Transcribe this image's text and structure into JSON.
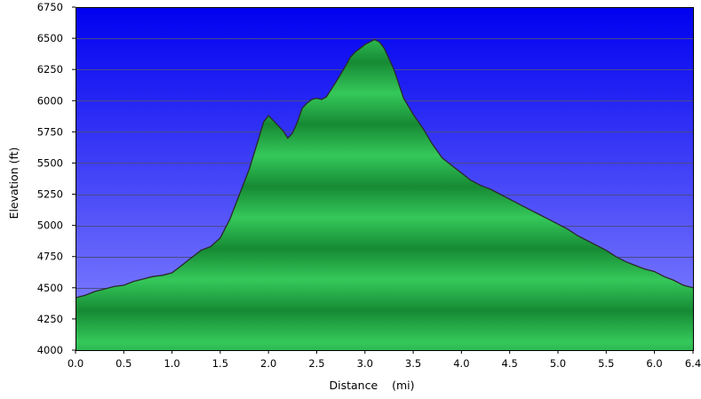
{
  "chart_data": {
    "type": "area",
    "title": "",
    "xlabel": "Distance    (mi)",
    "ylabel": "Elevation (ft)",
    "xlim": [
      0,
      6.4
    ],
    "ylim": [
      4000,
      6750
    ],
    "x_ticks": [
      "0.0",
      "0.5",
      "1.0",
      "1.5",
      "2.0",
      "2.5",
      "3.0",
      "3.5",
      "4.0",
      "4.5",
      "5.0",
      "5.5",
      "6.0",
      "6.4"
    ],
    "x_tick_values": [
      0,
      0.5,
      1,
      1.5,
      2,
      2.5,
      3,
      3.5,
      4,
      4.5,
      5,
      5.5,
      6,
      6.4
    ],
    "y_ticks": [
      "4000",
      "4250",
      "4500",
      "4750",
      "5000",
      "5250",
      "5500",
      "5750",
      "6000",
      "6250",
      "6500",
      "6750"
    ],
    "y_tick_values": [
      4000,
      4250,
      4500,
      4750,
      5000,
      5250,
      5500,
      5750,
      6000,
      6250,
      6500,
      6750
    ],
    "grid": true,
    "colors": {
      "sky_top": "#0000f0",
      "sky_bottom": "#8a8aff",
      "fill_light": "#35c85a",
      "fill_dark": "#168a34",
      "outline": "#2a2a2a",
      "grid": "#4a4a8a"
    },
    "series": [
      {
        "x": [
          0,
          0.1,
          0.2,
          0.3,
          0.4,
          0.5,
          0.6,
          0.7,
          0.8,
          0.9,
          1.0,
          1.1,
          1.2,
          1.3,
          1.4,
          1.5,
          1.6,
          1.7,
          1.8,
          1.9,
          1.95,
          2.0,
          2.05,
          2.1,
          2.15,
          2.2,
          2.25,
          2.3,
          2.35,
          2.4,
          2.45,
          2.5,
          2.55,
          2.6,
          2.7,
          2.8,
          2.85,
          2.9,
          2.95,
          3.0,
          3.05,
          3.1,
          3.15,
          3.2,
          3.3,
          3.4,
          3.5,
          3.6,
          3.7,
          3.8,
          3.9,
          4.0,
          4.1,
          4.2,
          4.3,
          4.4,
          4.5,
          4.6,
          4.7,
          4.8,
          4.9,
          5.0,
          5.1,
          5.2,
          5.3,
          5.4,
          5.5,
          5.6,
          5.7,
          5.8,
          5.9,
          6.0,
          6.1,
          6.2,
          6.3,
          6.4
        ],
        "y": [
          4420,
          4440,
          4470,
          4490,
          4510,
          4520,
          4550,
          4570,
          4590,
          4600,
          4620,
          4680,
          4740,
          4800,
          4830,
          4900,
          5050,
          5250,
          5450,
          5700,
          5830,
          5880,
          5840,
          5800,
          5760,
          5700,
          5740,
          5830,
          5940,
          5980,
          6010,
          6020,
          6010,
          6030,
          6150,
          6280,
          6350,
          6390,
          6420,
          6450,
          6470,
          6490,
          6470,
          6420,
          6250,
          6020,
          5890,
          5780,
          5650,
          5540,
          5480,
          5420,
          5360,
          5320,
          5290,
          5250,
          5210,
          5170,
          5130,
          5090,
          5050,
          5010,
          4970,
          4920,
          4880,
          4840,
          4800,
          4750,
          4710,
          4680,
          4650,
          4630,
          4590,
          4560,
          4520,
          4500
        ]
      }
    ]
  }
}
